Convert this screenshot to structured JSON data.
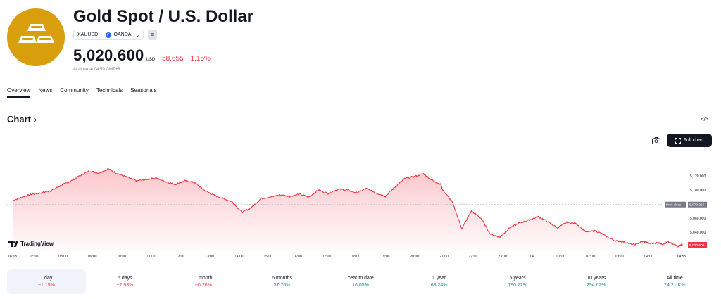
{
  "header": {
    "title": "Gold Spot / U.S. Dollar",
    "symbol": "XAUUSD",
    "exchange": "OANDA",
    "compare_button": "="
  },
  "quote": {
    "price": "5,020.600",
    "currency": "USD",
    "change": "−58.655",
    "change_percent": "−1.15%",
    "close_note": "At close at 04:59 GMT+8"
  },
  "tabs": [
    {
      "label": "Overview",
      "active": true
    },
    {
      "label": "News",
      "active": false
    },
    {
      "label": "Community",
      "active": false
    },
    {
      "label": "Technicals",
      "active": false
    },
    {
      "label": "Seasonals",
      "active": false
    }
  ],
  "chart_section": {
    "heading": "Chart",
    "full_chart_label": "Full chart",
    "brand": "TradingView",
    "embed_label": "</>"
  },
  "colors": {
    "down": "#f23645",
    "up": "#089981",
    "gold": "#d89e0c",
    "line": "#f23645"
  },
  "chart_data": {
    "type": "area",
    "x_ticks": [
      "06:05",
      "07:00",
      "08:00",
      "09:00",
      "10:00",
      "11:00",
      "12:00",
      "13:00",
      "14:00",
      "15:00",
      "16:00",
      "17:00",
      "18:00",
      "19:00",
      "20:00",
      "21:00",
      "22:00",
      "23:00",
      "14",
      "01:00",
      "02:00",
      "03:00",
      "04:00",
      "04:55"
    ],
    "y_ticks": [
      "5,120.000",
      "5,100.000",
      "5,060.000",
      "5,040.000"
    ],
    "ylim": [
      5018,
      5138
    ],
    "prev_close": 5079.255,
    "prev_close_label": "Prev close",
    "prev_close_value": "5,079.255",
    "last_value_label": "5,020.600",
    "series": [
      {
        "x": [
          0,
          0.5,
          1,
          1.5,
          2,
          2.5,
          3,
          3.5,
          4,
          4.5,
          5,
          5.5,
          6,
          6.5,
          7,
          7.5,
          8,
          8.5,
          9,
          9.5,
          10,
          10.5,
          11,
          11.5,
          12,
          12.5,
          13,
          13.5,
          14,
          14.5,
          15,
          15.5,
          16,
          16.5,
          17,
          17.5,
          18,
          18.5,
          19,
          19.5,
          20,
          20.5,
          21,
          21.5,
          22,
          22.4,
          22.5,
          23,
          23.5,
          24,
          24.5,
          25,
          25.5,
          26,
          26.5,
          27,
          27.5,
          28,
          28.5,
          29,
          29.5,
          30,
          30.5,
          31,
          31.5,
          32,
          32.5,
          33,
          33.3,
          33.8,
          34,
          34.3,
          34.8,
          35
        ],
        "y": [
          5085,
          5090,
          5094,
          5096,
          5099,
          5106,
          5112,
          5120,
          5127,
          5124,
          5130,
          5123,
          5118,
          5113,
          5115,
          5117,
          5112,
          5108,
          5113,
          5111,
          5100,
          5093,
          5088,
          5083,
          5068,
          5075,
          5088,
          5090,
          5093,
          5091,
          5094,
          5090,
          5100,
          5095,
          5101,
          5100,
          5096,
          5102,
          5096,
          5091,
          5104,
          5116,
          5119,
          5123,
          5113,
          5108,
          5100,
          5083,
          5045,
          5070,
          5060,
          5037,
          5033,
          5046,
          5053,
          5057,
          5062,
          5055,
          5046,
          5054,
          5052,
          5040,
          5042,
          5035,
          5028,
          5026,
          5022,
          5027,
          5024,
          5025,
          5023,
          5026,
          5020,
          5022
        ]
      }
    ]
  },
  "periods": [
    {
      "label": "1 day",
      "value": "−1.15%",
      "dir": "down",
      "active": true
    },
    {
      "label": "5 days",
      "value": "−2.93%",
      "dir": "down",
      "active": false
    },
    {
      "label": "1 month",
      "value": "−0.26%",
      "dir": "down",
      "active": false
    },
    {
      "label": "6 months",
      "value": "37.76%",
      "dir": "up",
      "active": false
    },
    {
      "label": "Year to date",
      "value": "16.05%",
      "dir": "up",
      "active": false
    },
    {
      "label": "1 year",
      "value": "68.24%",
      "dir": "up",
      "active": false
    },
    {
      "label": "5 years",
      "value": "190.72%",
      "dir": "up",
      "active": false
    },
    {
      "label": "10 years",
      "value": "294.62%",
      "dir": "up",
      "active": false
    },
    {
      "label": "All time",
      "value": "24.21 K%",
      "dir": "up",
      "active": false
    }
  ]
}
